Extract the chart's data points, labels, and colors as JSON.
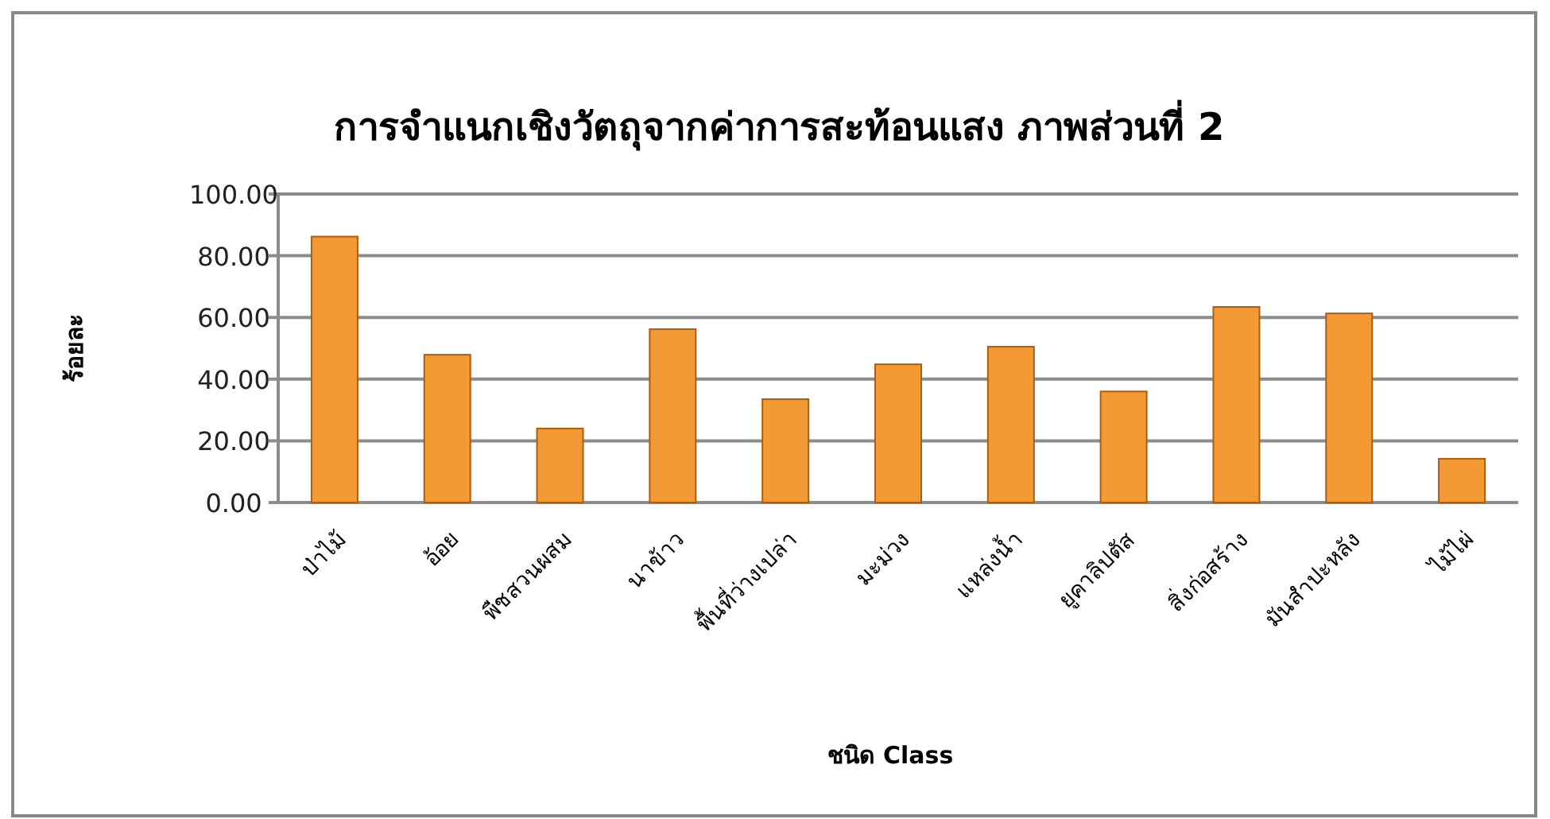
{
  "chart_data": {
    "type": "bar",
    "title": "การจำแนกเชิงวัตถุจากค่าการสะท้อนแสง ภาพส่วนที่ 2",
    "xlabel": "ชนิด Class",
    "ylabel": "ร้อยละ",
    "categories": [
      "ป่าไม้",
      "อ้อย",
      "พืชสวนผสม",
      "นาข้าว",
      "พื้นที่ว่างเปล่า",
      "มะม่วง",
      "แหล่งน้ำ",
      "ยูคาลิปตัส",
      "สิ่งก่อสร้าง",
      "มันสำปะหลัง",
      "ไม้ไผ่"
    ],
    "values": [
      86.2,
      47.9,
      24.0,
      56.2,
      33.5,
      44.8,
      50.5,
      36.0,
      63.4,
      61.3,
      14.2
    ],
    "color": "#f39a35",
    "ylim": [
      0,
      100
    ],
    "yticks": [
      {
        "value": 0,
        "label": "0.00"
      },
      {
        "value": 20,
        "label": "20.00"
      },
      {
        "value": 40,
        "label": "40.00"
      },
      {
        "value": 60,
        "label": "60.00"
      },
      {
        "value": 80,
        "label": "80.00"
      },
      {
        "value": 100,
        "label": "100.00"
      }
    ],
    "grid": "y"
  }
}
